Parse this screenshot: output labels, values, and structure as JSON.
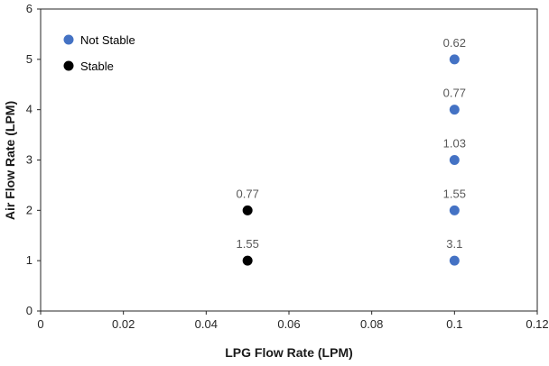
{
  "chart_data": {
    "type": "scatter",
    "title": "",
    "xlabel": "LPG Flow Rate (LPM)",
    "ylabel": "Air Flow Rate (LPM)",
    "xlim": [
      0,
      0.12
    ],
    "ylim": [
      0,
      6
    ],
    "xticks": [
      "0",
      "0.02",
      "0.04",
      "0.06",
      "0.08",
      "0.1",
      "0.12"
    ],
    "yticks": [
      "0",
      "1",
      "2",
      "3",
      "4",
      "5",
      "6"
    ],
    "grid": false,
    "legend": {
      "position": "top-left-inside"
    },
    "colors": {
      "axis": "#262626",
      "data_label": "#595959",
      "not_stable": "#4472C4",
      "stable": "#000000"
    },
    "series": [
      {
        "name": "Not Stable",
        "color": "#4472C4",
        "points": [
          {
            "x": 0.1,
            "y": 5,
            "label": "0.62"
          },
          {
            "x": 0.1,
            "y": 4,
            "label": "0.77"
          },
          {
            "x": 0.1,
            "y": 3,
            "label": "1.03"
          },
          {
            "x": 0.1,
            "y": 2,
            "label": "1.55"
          },
          {
            "x": 0.1,
            "y": 1,
            "label": "3.1"
          }
        ]
      },
      {
        "name": "Stable",
        "color": "#000000",
        "points": [
          {
            "x": 0.05,
            "y": 2,
            "label": "0.77"
          },
          {
            "x": 0.05,
            "y": 1,
            "label": "1.55"
          }
        ]
      }
    ]
  }
}
